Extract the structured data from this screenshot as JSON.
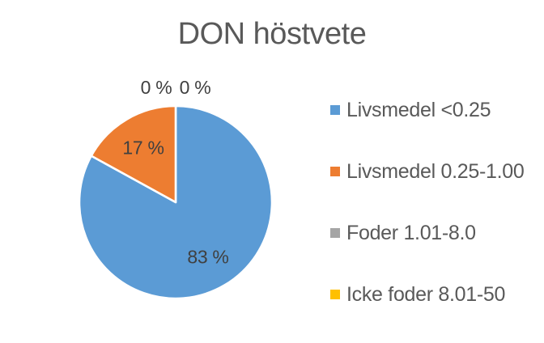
{
  "chart_data": {
    "type": "pie",
    "title": "DON höstvete",
    "categories": [
      "Livsmedel <0.25",
      "Livsmedel 0.25-1.00",
      "Foder 1.01-8.0",
      "Icke foder 8.01-50"
    ],
    "values": [
      83,
      17,
      0,
      0
    ],
    "data_labels": [
      "83 %",
      "17 %",
      "0 %",
      "0 %"
    ],
    "slice_colors": [
      "#5B9BD5",
      "#ED7D31",
      "#A5A5A5",
      "#FFC000"
    ],
    "start_angle": 0,
    "direction": "clockwise",
    "legend_position": "right",
    "data_label_format": "percent"
  },
  "colors": {
    "background": "#FFFFFF",
    "title_text": "#595959",
    "label_text": "#404040",
    "legend_text": "#595959",
    "slice_border": "#FFFFFF"
  }
}
